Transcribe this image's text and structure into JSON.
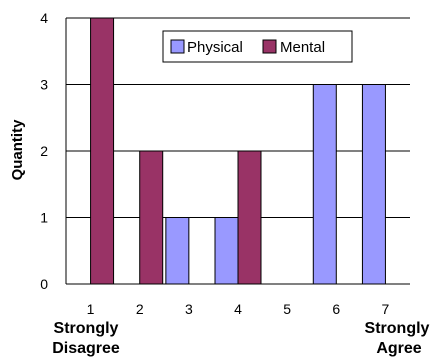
{
  "chart_data": {
    "type": "bar",
    "ylabel": "Quantity",
    "ylim": [
      0,
      4
    ],
    "yticks": [
      0,
      1,
      2,
      3,
      4
    ],
    "grid": true,
    "legend": "top-right",
    "categories": [
      "1",
      "2",
      "3",
      "4",
      "5",
      "6",
      "7"
    ],
    "series": [
      {
        "name": "Physical",
        "color": "#9999ff",
        "values": [
          0,
          0,
          1,
          1,
          0,
          3,
          3
        ]
      },
      {
        "name": "Mental",
        "color": "#993366",
        "values": [
          4,
          2,
          0,
          2,
          0,
          0,
          0
        ]
      }
    ],
    "annotations": {
      "left": [
        "Strongly",
        "Disagree"
      ],
      "right": [
        "Strongly",
        "Agree"
      ]
    }
  }
}
